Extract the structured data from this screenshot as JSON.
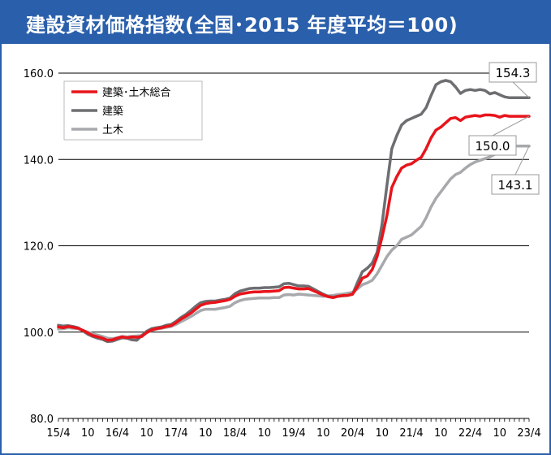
{
  "title": "建設資材価格指数(全国･2015 年度平均＝100)",
  "chart_data": {
    "type": "line",
    "title": "建設資材価格指数(全国･2015 年度平均＝100)",
    "ylim": [
      80,
      160
    ],
    "yticks": [
      "80.0",
      "100.0",
      "120.0",
      "140.0",
      "160.0"
    ],
    "ytick_values": [
      80,
      100,
      120,
      140,
      160
    ],
    "grid": true,
    "legend_position": "top-left",
    "x_labels": [
      "15/4",
      "10",
      "16/4",
      "10",
      "17/4",
      "10",
      "18/4",
      "10",
      "19/4",
      "10",
      "20/4",
      "10",
      "21/4",
      "10",
      "22/4",
      "10",
      "23/4"
    ],
    "x": [
      0,
      1,
      2,
      3,
      4,
      5,
      6,
      7,
      8,
      9,
      10,
      11,
      12,
      13,
      14,
      15,
      16,
      17,
      18,
      19,
      20,
      21,
      22,
      23,
      24,
      25,
      26,
      27,
      28,
      29,
      30,
      31,
      32,
      33,
      34,
      35,
      36,
      37,
      38,
      39,
      40,
      41,
      42,
      43,
      44,
      45,
      46,
      47,
      48,
      49,
      50,
      51,
      52,
      53,
      54,
      55,
      56,
      57,
      58,
      59,
      60,
      61,
      62,
      63,
      64,
      65,
      66,
      67,
      68,
      69,
      70,
      71,
      72,
      73,
      74,
      75,
      76,
      77,
      78,
      79,
      80,
      81,
      82,
      83,
      84,
      85,
      86,
      87,
      88,
      89,
      90,
      91,
      92,
      93,
      94,
      95,
      96
    ],
    "series": [
      {
        "name": "建築･土木総合",
        "color": "#e8141b",
        "values": [
          101.2,
          101.0,
          101.3,
          101.1,
          100.9,
          100.4,
          99.8,
          99.2,
          98.9,
          98.6,
          98.1,
          98.2,
          98.6,
          98.9,
          98.7,
          98.9,
          98.8,
          99.0,
          99.9,
          100.5,
          100.8,
          101.0,
          101.3,
          101.5,
          102.2,
          103.0,
          103.7,
          104.4,
          105.3,
          106.2,
          106.6,
          106.8,
          106.9,
          107.1,
          107.3,
          107.6,
          108.3,
          108.8,
          109.0,
          109.2,
          109.3,
          109.3,
          109.4,
          109.4,
          109.5,
          109.6,
          110.3,
          110.4,
          110.2,
          110.0,
          110.0,
          110.1,
          109.6,
          109.1,
          108.6,
          108.2,
          108.0,
          108.3,
          108.5,
          108.5,
          108.8,
          110.5,
          112.5,
          113.0,
          114.5,
          117.5,
          122.0,
          127.0,
          133.5,
          136.0,
          138.0,
          138.7,
          139.0,
          139.8,
          140.5,
          142.5,
          145.0,
          146.8,
          147.5,
          148.5,
          149.5,
          149.7,
          149.0,
          149.8,
          150.0,
          150.2,
          150.0,
          150.3,
          150.3,
          150.2,
          149.8,
          150.2,
          150.0,
          150.0,
          150.0,
          150.0,
          150.0
        ]
      },
      {
        "name": "建築",
        "color": "#6d6e71",
        "values": [
          101.6,
          101.4,
          101.5,
          101.3,
          101.0,
          100.3,
          99.5,
          99.0,
          98.6,
          98.3,
          97.8,
          97.9,
          98.3,
          98.7,
          98.6,
          98.2,
          98.1,
          99.2,
          100.2,
          100.8,
          101.0,
          101.2,
          101.6,
          101.8,
          102.5,
          103.4,
          104.1,
          105.0,
          106.0,
          106.8,
          107.1,
          107.2,
          107.2,
          107.4,
          107.6,
          107.9,
          108.9,
          109.5,
          109.8,
          110.1,
          110.2,
          110.2,
          110.3,
          110.3,
          110.4,
          110.5,
          111.2,
          111.3,
          111.0,
          110.7,
          110.7,
          110.6,
          110.0,
          109.4,
          108.8,
          108.3,
          108.1,
          108.3,
          108.4,
          108.5,
          108.8,
          111.5,
          114.0,
          114.8,
          116.0,
          118.5,
          125.0,
          134.0,
          142.5,
          145.5,
          148.0,
          149.0,
          149.5,
          150.0,
          150.5,
          152.0,
          154.8,
          157.3,
          158.0,
          158.3,
          158.0,
          156.8,
          155.3,
          156.0,
          156.2,
          156.0,
          156.2,
          156.0,
          155.2,
          155.5,
          155.0,
          154.5,
          154.3,
          154.3,
          154.3,
          154.3,
          154.3
        ]
      },
      {
        "name": "土木",
        "color": "#a7a9ac",
        "values": [
          100.7,
          100.8,
          101.0,
          100.9,
          100.8,
          100.4,
          100.0,
          99.6,
          99.3,
          99.0,
          98.6,
          98.5,
          98.7,
          99.0,
          98.9,
          99.0,
          99.1,
          99.2,
          99.9,
          100.4,
          100.7,
          100.9,
          101.1,
          101.3,
          101.8,
          102.4,
          103.0,
          103.6,
          104.3,
          105.0,
          105.3,
          105.3,
          105.3,
          105.5,
          105.7,
          106.0,
          106.8,
          107.3,
          107.6,
          107.7,
          107.8,
          107.9,
          107.9,
          107.9,
          108.0,
          108.0,
          108.6,
          108.7,
          108.6,
          108.8,
          108.7,
          108.6,
          108.5,
          108.4,
          108.3,
          108.4,
          108.5,
          108.7,
          108.8,
          109.0,
          109.2,
          110.0,
          111.0,
          111.4,
          112.0,
          113.5,
          115.5,
          117.5,
          119.0,
          120.0,
          121.5,
          122.0,
          122.5,
          123.5,
          124.5,
          126.5,
          129.0,
          131.0,
          132.5,
          134.0,
          135.5,
          136.5,
          137.0,
          138.0,
          138.8,
          139.4,
          139.8,
          140.2,
          140.6,
          141.2,
          141.8,
          142.5,
          143.1,
          143.1,
          143.1,
          143.1,
          143.1
        ]
      }
    ],
    "callouts": [
      {
        "series": 1,
        "label": "154.3"
      },
      {
        "series": 0,
        "label": "150.0"
      },
      {
        "series": 2,
        "label": "143.1"
      }
    ]
  }
}
